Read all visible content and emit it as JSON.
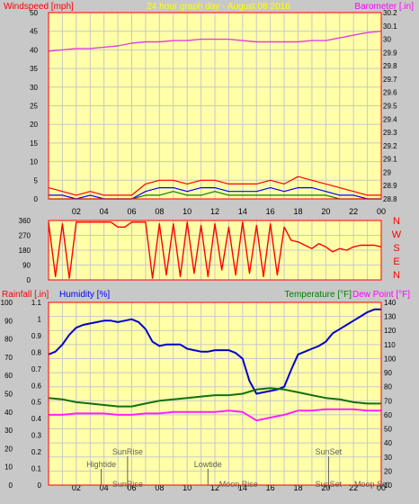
{
  "colors": {
    "background": "#c8c8c8",
    "plot_bg": "#ffffa8",
    "grid": "#c8c8c8",
    "wind_gust": "#ff0000",
    "wind_avg": "#0000ff",
    "wind_low": "#008000",
    "barometer": "#e040e0",
    "direction": "#ff0000",
    "humidity": "#0000d0",
    "temperature": "#107010",
    "dewpoint": "#ff20ff",
    "rainfall": "#ff0000",
    "label_red": "#ff0000",
    "label_yellow": "#ffff00",
    "label_magenta": "#ff00ff",
    "label_blue": "#0000ff",
    "label_green": "#008000",
    "annotation": "#606060"
  },
  "chart_data": [
    {
      "type": "line",
      "title": "24 hour graph day - August 08 2016",
      "ylabel": "Windspeed [mph]",
      "y2label": "Barometer [.in]",
      "xticks": [
        "02",
        "04",
        "06",
        "08",
        "10",
        "12",
        "14",
        "16",
        "18",
        "20",
        "22",
        "00"
      ],
      "ylim": [
        0,
        50
      ],
      "yticks": [
        0,
        5,
        10,
        15,
        20,
        25,
        30,
        35,
        40,
        45,
        50
      ],
      "y2lim": [
        28.8,
        30.2
      ],
      "y2ticks": [
        "28.8",
        "28.9",
        "29",
        "29.1",
        "29.2",
        "29.3",
        "29.4",
        "29.5",
        "29.6",
        "29.7",
        "29.8",
        "29.9",
        "30",
        "30.1",
        "30.2"
      ],
      "series": [
        {
          "name": "Barometer",
          "axis": "right",
          "x": [
            0,
            1,
            2,
            3,
            4,
            5,
            6,
            7,
            8,
            9,
            10,
            11,
            12,
            13,
            14,
            15,
            16,
            17,
            18,
            19,
            20,
            21,
            22,
            23,
            24
          ],
          "values": [
            29.91,
            29.92,
            29.93,
            29.93,
            29.94,
            29.95,
            29.97,
            29.98,
            29.98,
            29.99,
            29.99,
            30.0,
            30.0,
            30.0,
            29.99,
            29.98,
            29.98,
            29.98,
            29.98,
            29.99,
            29.99,
            30.01,
            30.03,
            30.05,
            30.06
          ]
        },
        {
          "name": "Gust",
          "axis": "left",
          "x": [
            0,
            1,
            2,
            3,
            4,
            5,
            6,
            7,
            8,
            9,
            10,
            11,
            12,
            13,
            14,
            15,
            16,
            17,
            18,
            19,
            20,
            21,
            22,
            23,
            24
          ],
          "values": [
            3,
            2,
            1,
            2,
            1,
            1,
            1,
            4,
            5,
            5,
            4,
            5,
            5,
            4,
            4,
            4,
            5,
            4,
            6,
            5,
            4,
            3,
            2,
            1,
            1
          ]
        },
        {
          "name": "Average",
          "axis": "left",
          "x": [
            0,
            1,
            2,
            3,
            4,
            5,
            6,
            7,
            8,
            9,
            10,
            11,
            12,
            13,
            14,
            15,
            16,
            17,
            18,
            19,
            20,
            21,
            22,
            23,
            24
          ],
          "values": [
            1,
            1,
            0,
            1,
            0,
            0,
            0,
            2,
            3,
            3,
            2,
            3,
            3,
            2,
            2,
            2,
            3,
            2,
            3,
            3,
            2,
            1,
            1,
            0,
            0
          ]
        },
        {
          "name": "Low",
          "axis": "left",
          "x": [
            0,
            1,
            2,
            3,
            4,
            5,
            6,
            7,
            8,
            9,
            10,
            11,
            12,
            13,
            14,
            15,
            16,
            17,
            18,
            19,
            20,
            21,
            22,
            23,
            24
          ],
          "values": [
            0,
            0,
            0,
            0,
            0,
            0,
            0,
            1,
            1,
            2,
            1,
            1,
            2,
            1,
            1,
            1,
            1,
            1,
            1,
            1,
            1,
            0,
            0,
            0,
            0
          ]
        }
      ]
    },
    {
      "type": "line",
      "ylim": [
        0,
        360
      ],
      "yticks": [
        0,
        90,
        180,
        270,
        360
      ],
      "direction_labels": [
        "N",
        "W",
        "S",
        "E",
        "N"
      ],
      "series": [
        {
          "name": "Wind direction",
          "x": [
            0,
            0.5,
            1,
            1.5,
            2,
            2.5,
            3,
            3.5,
            4,
            4.5,
            5,
            5.5,
            6,
            6.5,
            7,
            7.5,
            8,
            8.5,
            9,
            9.5,
            10,
            10.5,
            11,
            11.5,
            12,
            12.5,
            13,
            13.5,
            14,
            14.5,
            15,
            15.5,
            16,
            16.5,
            17,
            17.5,
            18,
            18.5,
            19,
            19.5,
            20,
            20.5,
            21,
            21.5,
            22,
            22.5,
            23,
            23.5,
            24
          ],
          "values": [
            350,
            20,
            340,
            10,
            350,
            350,
            350,
            350,
            350,
            350,
            320,
            320,
            350,
            350,
            350,
            10,
            340,
            30,
            340,
            20,
            350,
            40,
            330,
            20,
            340,
            60,
            320,
            30,
            350,
            40,
            330,
            20,
            340,
            30,
            320,
            240,
            230,
            210,
            190,
            220,
            200,
            170,
            190,
            180,
            200,
            210,
            210,
            210,
            200
          ]
        }
      ]
    },
    {
      "type": "line",
      "y_rain_label": "Rainfall [.in]",
      "y_hum_label": "Humidity [%]",
      "y_temp_label": "Temperature [°F]",
      "y_dew_label": "Dew Point [°F]",
      "xticks": [
        "02",
        "04",
        "06",
        "08",
        "10",
        "12",
        "14",
        "16",
        "18",
        "20",
        "22",
        "00"
      ],
      "rain_lim": [
        0,
        1.1
      ],
      "rain_ticks": [
        "0",
        "0.1",
        "0.2",
        "0.3",
        "0.4",
        "0.5",
        "0.6",
        "0.7",
        "0.8",
        "0.9",
        "1",
        "1.1"
      ],
      "hum_lim": [
        0,
        100
      ],
      "hum_ticks": [
        0,
        10,
        20,
        30,
        40,
        50,
        60,
        70,
        80,
        90,
        100
      ],
      "temp_lim": [
        10,
        140
      ],
      "temp_ticks": [
        10,
        20,
        30,
        40,
        50,
        60,
        70,
        80,
        90,
        100,
        110,
        120,
        130,
        140
      ],
      "series": [
        {
          "name": "Humidity",
          "axis": "temp",
          "x": [
            0,
            0.5,
            1,
            1.5,
            2,
            2.5,
            3,
            3.5,
            4,
            4.5,
            5,
            5.5,
            6,
            6.5,
            7,
            7.5,
            8,
            8.5,
            9,
            9.5,
            10,
            10.5,
            11,
            11.5,
            12,
            12.5,
            13,
            13.5,
            14,
            14.5,
            15,
            15.5,
            16,
            16.5,
            17,
            17.5,
            18,
            18.5,
            19,
            19.5,
            20,
            20.5,
            21,
            21.5,
            22,
            22.5,
            23,
            23.5,
            24
          ],
          "values": [
            103,
            105,
            110,
            117,
            122,
            124,
            125,
            126,
            127,
            127,
            126,
            127,
            128,
            126,
            121,
            112,
            109,
            110,
            110,
            110,
            107,
            106,
            105,
            105,
            106,
            106,
            106,
            104,
            100,
            84,
            75,
            76,
            77,
            78,
            80,
            92,
            103,
            105,
            107,
            109,
            112,
            118,
            121,
            124,
            127,
            130,
            133,
            135,
            135
          ]
        },
        {
          "name": "Temperature",
          "axis": "temp",
          "x": [
            0,
            1,
            2,
            3,
            4,
            5,
            6,
            7,
            8,
            9,
            10,
            11,
            12,
            13,
            14,
            15,
            16,
            17,
            18,
            19,
            20,
            21,
            22,
            23,
            24
          ],
          "values": [
            72,
            71,
            69,
            68,
            67,
            66,
            66,
            68,
            70,
            71,
            72,
            73,
            74,
            74,
            75,
            78,
            79,
            78,
            76,
            74,
            72,
            71,
            69,
            68,
            68
          ]
        },
        {
          "name": "Dew Point",
          "axis": "temp",
          "x": [
            0,
            1,
            2,
            3,
            4,
            5,
            6,
            7,
            8,
            9,
            10,
            11,
            12,
            13,
            14,
            15,
            16,
            17,
            18,
            19,
            20,
            21,
            22,
            23,
            24
          ],
          "values": [
            60,
            60,
            61,
            61,
            61,
            60,
            60,
            61,
            61,
            62,
            62,
            62,
            62,
            63,
            62,
            56,
            58,
            60,
            63,
            63,
            64,
            64,
            64,
            63,
            63
          ]
        }
      ],
      "annotations": [
        {
          "label": "Hightide",
          "hour": 3.8,
          "row": 1
        },
        {
          "label": "SunRise",
          "hour": 5.7,
          "row": 0
        },
        {
          "label": "SunRise",
          "hour": 5.7,
          "row": 2
        },
        {
          "label": "Lowtide",
          "hour": 11.5,
          "row": 1
        },
        {
          "label": "Moon Rise",
          "hour": 13.7,
          "row": 2
        },
        {
          "label": "SunSet",
          "hour": 20.2,
          "row": 0
        },
        {
          "label": "SunSet",
          "hour": 20.2,
          "row": 2
        },
        {
          "label": "Moon Set",
          "hour": 23.3,
          "row": 2
        }
      ]
    }
  ]
}
